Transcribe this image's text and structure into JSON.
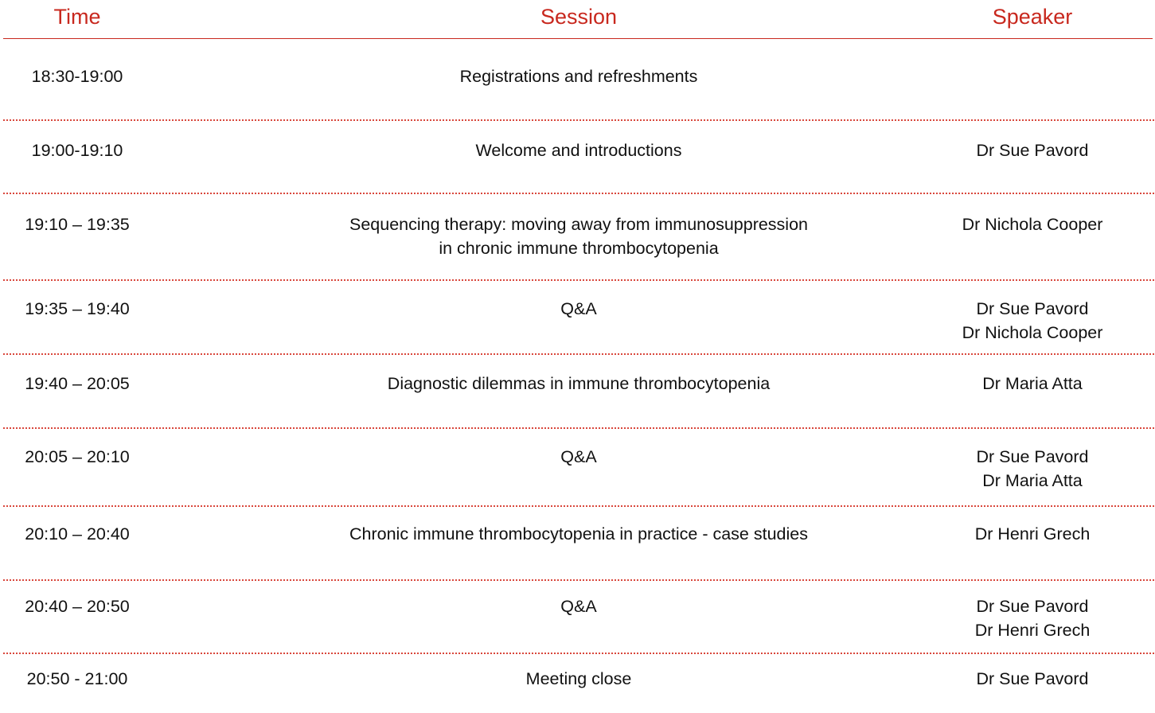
{
  "headers": {
    "time": "Time",
    "session": "Session",
    "speaker": "Speaker"
  },
  "accent_color": "#c8281e",
  "rows": [
    {
      "time": "18:30-19:00",
      "session": [
        "Registrations and refreshments"
      ],
      "speakers": []
    },
    {
      "time": "19:00-19:10",
      "session": [
        "Welcome and introductions"
      ],
      "speakers": [
        "Dr Sue Pavord"
      ]
    },
    {
      "time": "19:10 – 19:35",
      "session": [
        "Sequencing therapy: moving away from immunosuppression",
        "in chronic immune thrombocytopenia"
      ],
      "speakers": [
        "Dr Nichola Cooper"
      ]
    },
    {
      "time": "19:35 – 19:40",
      "session": [
        "Q&A"
      ],
      "speakers": [
        "Dr Sue Pavord",
        "Dr Nichola Cooper"
      ]
    },
    {
      "time": "19:40 – 20:05",
      "session": [
        "Diagnostic dilemmas in immune thrombocytopenia"
      ],
      "speakers": [
        "Dr Maria Atta"
      ]
    },
    {
      "time": "20:05 – 20:10",
      "session": [
        "Q&A"
      ],
      "speakers": [
        "Dr Sue Pavord",
        "Dr Maria Atta"
      ]
    },
    {
      "time": "20:10 – 20:40",
      "session": [
        "Chronic immune thrombocytopenia in practice - case studies"
      ],
      "speakers": [
        "Dr Henri Grech"
      ]
    },
    {
      "time": "20:40 – 20:50",
      "session": [
        "Q&A"
      ],
      "speakers": [
        "Dr Sue Pavord",
        "Dr Henri Grech"
      ]
    },
    {
      "time": "20:50 - 21:00",
      "session": [
        "Meeting close"
      ],
      "speakers": [
        "Dr Sue Pavord"
      ]
    }
  ]
}
